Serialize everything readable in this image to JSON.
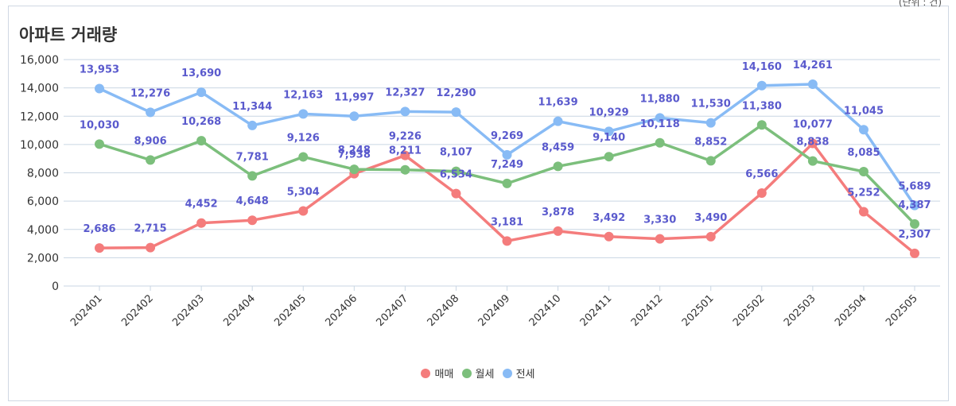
{
  "page": {
    "title": "아파트 거래량",
    "unit_note": "(단위 : 건)"
  },
  "colors": {
    "매매": "#f47c7c",
    "월세": "#7cbf7c",
    "전세": "#88bbf5",
    "label": "#5a5acd",
    "grid": "#c9d6e3",
    "axis_text": "#333333"
  },
  "chart_data": {
    "type": "line",
    "title": "아파트 거래량",
    "xlabel": "",
    "ylabel": "",
    "ylim": [
      0,
      16000
    ],
    "yticks": [
      0,
      2000,
      4000,
      6000,
      8000,
      10000,
      12000,
      14000,
      16000
    ],
    "ytick_labels": [
      "0",
      "2,000",
      "4,000",
      "6,000",
      "8,000",
      "10,000",
      "12,000",
      "14,000",
      "16,000"
    ],
    "grid": "horizontal",
    "legend_position": "bottom",
    "categories": [
      "202401",
      "202402",
      "202403",
      "202404",
      "202405",
      "202406",
      "202407",
      "202408",
      "202409",
      "202410",
      "202411",
      "202412",
      "202501",
      "202502",
      "202503",
      "202504",
      "202505"
    ],
    "series": [
      {
        "name": "매매",
        "values": [
          2686,
          2715,
          4452,
          4648,
          5304,
          7938,
          9226,
          6534,
          3181,
          3878,
          3492,
          3330,
          3490,
          6566,
          10077,
          5252,
          2307
        ],
        "labels": [
          "2,686",
          "2,715",
          "4,452",
          "4,648",
          "5,304",
          "7,938",
          "9,226",
          "6,534",
          "3,181",
          "3,878",
          "3,492",
          "3,330",
          "3,490",
          "6,566",
          "10,077",
          "5,252",
          "2,307"
        ]
      },
      {
        "name": "월세",
        "values": [
          10030,
          8906,
          10268,
          7781,
          9126,
          8248,
          8211,
          8107,
          7249,
          8459,
          9140,
          10118,
          8852,
          11380,
          8838,
          8085,
          4387
        ],
        "labels": [
          "10,030",
          "8,906",
          "10,268",
          "7,781",
          "9,126",
          "8,248",
          "8,211",
          "8,107",
          "7,249",
          "8,459",
          "9,140",
          "10,118",
          "8,852",
          "11,380",
          "8,838",
          "8,085",
          "4,387"
        ]
      },
      {
        "name": "전세",
        "values": [
          13953,
          12276,
          13690,
          11344,
          12163,
          11997,
          12327,
          12290,
          9269,
          11639,
          10929,
          11880,
          11530,
          14160,
          14261,
          11045,
          5689
        ],
        "labels": [
          "13,953",
          "12,276",
          "13,690",
          "11,344",
          "12,163",
          "11,997",
          "12,327",
          "12,290",
          "9,269",
          "11,639",
          "10,929",
          "11,880",
          "11,530",
          "14,160",
          "14,261",
          "11,045",
          "5,689"
        ]
      }
    ]
  }
}
